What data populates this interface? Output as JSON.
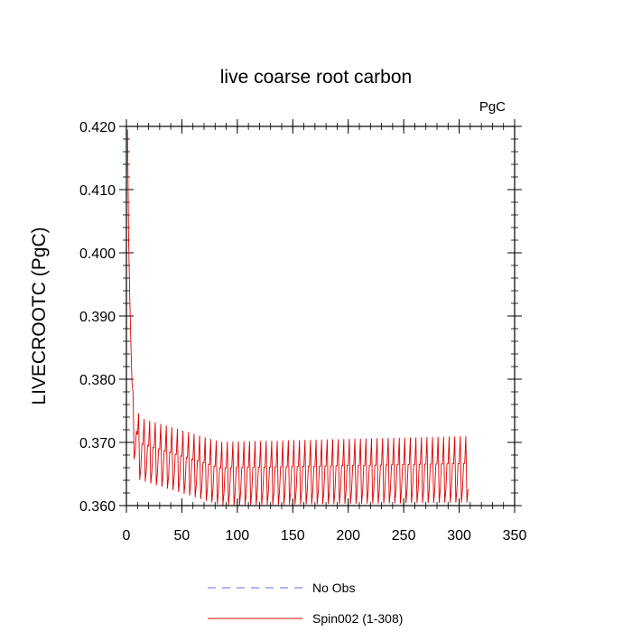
{
  "chart_data": {
    "type": "line",
    "title": "live coarse root carbon",
    "units_label": "PgC",
    "ylabel": "LIVECROOTC  (PgC)",
    "xlabel": "",
    "xlim": [
      0,
      350
    ],
    "ylim": [
      0.36,
      0.42
    ],
    "x_ticks": [
      0,
      50,
      100,
      150,
      200,
      250,
      300,
      350
    ],
    "x_tick_labels": [
      "0",
      "50",
      "100",
      "150",
      "200",
      "250",
      "300",
      "350"
    ],
    "y_ticks": [
      0.36,
      0.37,
      0.38,
      0.39,
      0.4,
      0.41,
      0.42
    ],
    "y_tick_labels": [
      "0.360",
      "0.370",
      "0.380",
      "0.390",
      "0.400",
      "0.410",
      "0.420"
    ],
    "series": [
      {
        "name": "No Obs",
        "color": "#6a6ae0",
        "style": "dashed",
        "values": []
      },
      {
        "name": "Spin002 (1-308)",
        "color": "#e00000",
        "style": "solid",
        "x_range": [
          1,
          308
        ],
        "description_model": {
          "initial": 0.4195,
          "baseline_start": 0.3698,
          "baseline_min": 0.3655,
          "baseline_end": 0.3662,
          "period": 5,
          "amp_start": 0.0045,
          "amp_end": 0.0048
        }
      }
    ]
  },
  "legend": {
    "items": [
      "No Obs",
      "Spin002 (1-308)"
    ]
  }
}
